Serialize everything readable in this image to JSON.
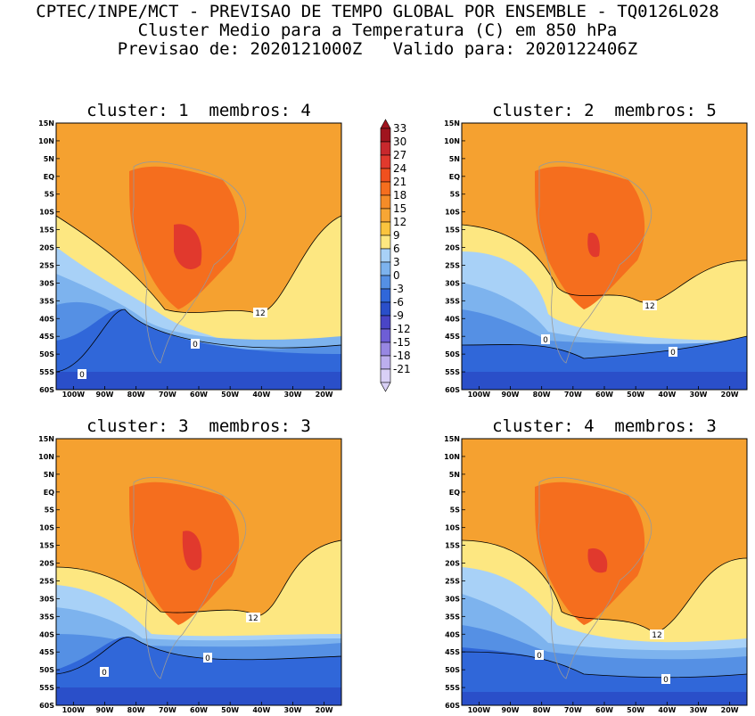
{
  "header": {
    "line1": "CPTEC/INPE/MCT - PREVISAO DE TEMPO GLOBAL POR ENSEMBLE - TQ0126L028",
    "line2": "Cluster Medio para a Temperatura (C) em 850 hPa",
    "line3": "Previsao de: 2020121000Z   Valido para: 2020122406Z"
  },
  "panels": [
    {
      "title": "cluster: 1  membros: 4"
    },
    {
      "title": "cluster: 2  membros: 5"
    },
    {
      "title": "cluster: 3  membros: 3"
    },
    {
      "title": "cluster: 4  membros: 3"
    }
  ],
  "axes": {
    "lat_labels": [
      "15N",
      "10N",
      "5N",
      "EQ",
      "5S",
      "10S",
      "15S",
      "20S",
      "25S",
      "30S",
      "35S",
      "40S",
      "45S",
      "50S",
      "55S",
      "60S"
    ],
    "lon_labels": [
      "100W",
      "90W",
      "80W",
      "70W",
      "60W",
      "50W",
      "40W",
      "30W",
      "20W"
    ]
  },
  "contour_labels": {
    "panel1": [
      "12",
      "0",
      "0"
    ],
    "panel2": [
      "12",
      "0",
      "0"
    ],
    "panel3": [
      "12",
      "0",
      "0"
    ],
    "panel4": [
      "12",
      "0",
      "0"
    ]
  },
  "colorbar": {
    "labels": [
      "33",
      "30",
      "27",
      "24",
      "21",
      "18",
      "15",
      "12",
      "9",
      "6",
      "3",
      "0",
      "-3",
      "-6",
      "-9",
      "-12",
      "-15",
      "-18",
      "-21"
    ],
    "colors": [
      "#a0141e",
      "#c8282d",
      "#e1392d",
      "#f0501e",
      "#f56e1e",
      "#f58c28",
      "#f7a635",
      "#fbc43e",
      "#fde781",
      "#a8d1f7",
      "#7db3ee",
      "#5590e4",
      "#3067d9",
      "#2a4fc9",
      "#4a45c6",
      "#6e5ed6",
      "#9787e2",
      "#bcaeed",
      "#d9d0f6"
    ]
  },
  "colors": {
    "background": "#ffffff",
    "map_border": "#999999"
  }
}
